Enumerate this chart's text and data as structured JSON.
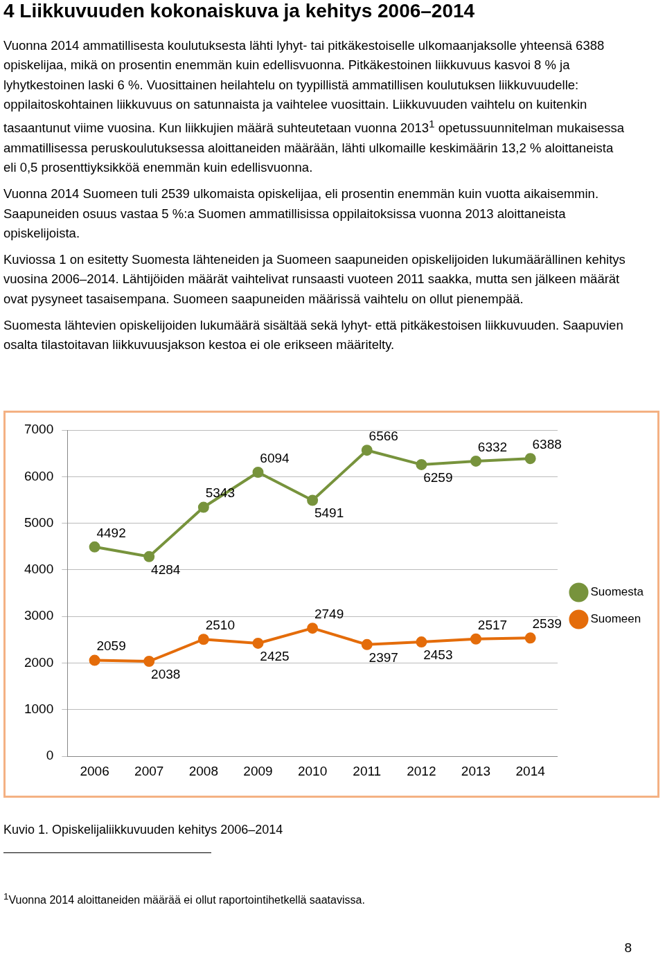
{
  "chart_data": {
    "type": "line",
    "title": "4 Liikkuvuuden kokonaiskuva ja kehitys 2006–2014",
    "annotations": [
      "Vuonna 2014 ammatillisesta koulutuksesta lähti lyhyt- tai pitkäkestoiselle ulkomaanjaksolle yhteensä 6388 opiskelijaa, mikä on prosentin enemmän kuin edellisvuonna. Pitkäkestoinen liikkuvuus kasvoi 8 % ja lyhytkestoinen laski 6 %. Vuosittainen heilahtelu on tyypillistä ammatillisen koulutuksen liikkuvuudelle: oppilaitoskohtainen liikkuvuus on satunnaista ja vaihtelee vuosittain.  Liikkuvuuden vaihtelu on kuitenkin tasaantunut viime vuosina. Kun liikkujien määrä suhteutetaan vuonna 2013$^{1}$ opetussuunnitelman mukaisessa ammatillisessa peruskoulutuksessa aloittaneiden määrään, lähti ulkomaille keskimäärin 13,2 % aloittaneista eli 0,5 prosenttiyksikköä enemmän kuin edellisvuonna.",
      "Vuonna 2014 Suomeen tuli 2539 ulkomaista opiskelijaa, eli prosentin enemmän kuin vuotta aikaisemmin. Saapuneiden osuus vastaa 5 %:a Suomen ammatillisissa oppilaitoksissa vuonna 2013 aloittaneista opiskelijoista.",
      "Kuviossa 1 on esitetty Suomesta lähteneiden ja Suomeen saapuneiden opiskelijoiden lukumäärällinen kehitys vuosina 2006–2014. Lähtijöiden määrät vaihtelivat runsaasti vuoteen 2011 saakka, mutta sen jälkeen määrät ovat pysyneet tasaisempana.  Suomeen saapuneiden määrissä vaihtelu on ollut pienempää.",
      "Suomesta lähtevien opiskelijoiden lukumäärä sisältää sekä lyhyt- että pitkäkestoisen liikkuvuuden. Saapuvien osalta tilastoitavan liikkuvuusjakson kestoa ei ole erikseen määritelty.",
      "Kuvio 1. Opiskelijaliikkuvuuden kehitys 2006–2014",
      "$^{1}$Vuonna 2014 aloittaneiden määrää ei ollut raportointihetkellä saatavissa.",
      "8"
    ],
    "categories": [
      "2006",
      "2007",
      "2008",
      "2009",
      "2010",
      "2011",
      "2012",
      "2013",
      "2014"
    ],
    "series": [
      {
        "name": "Suomesta",
        "color": "#77933c",
        "values": [
          4492,
          4284,
          5343,
          6094,
          5491,
          6566,
          6259,
          6332,
          6388
        ]
      },
      {
        "name": "Suomeen",
        "color": "#e46c0a",
        "values": [
          2059,
          2038,
          2510,
          2425,
          2749,
          2397,
          2453,
          2517,
          2539
        ]
      }
    ],
    "ylim": [
      0,
      7000
    ],
    "yticks": [
      0,
      1000,
      2000,
      3000,
      4000,
      5000,
      6000,
      7000
    ],
    "grid": "y",
    "legend": "right",
    "marker": "circle",
    "line_style": "solid",
    "data_labels": true
  }
}
